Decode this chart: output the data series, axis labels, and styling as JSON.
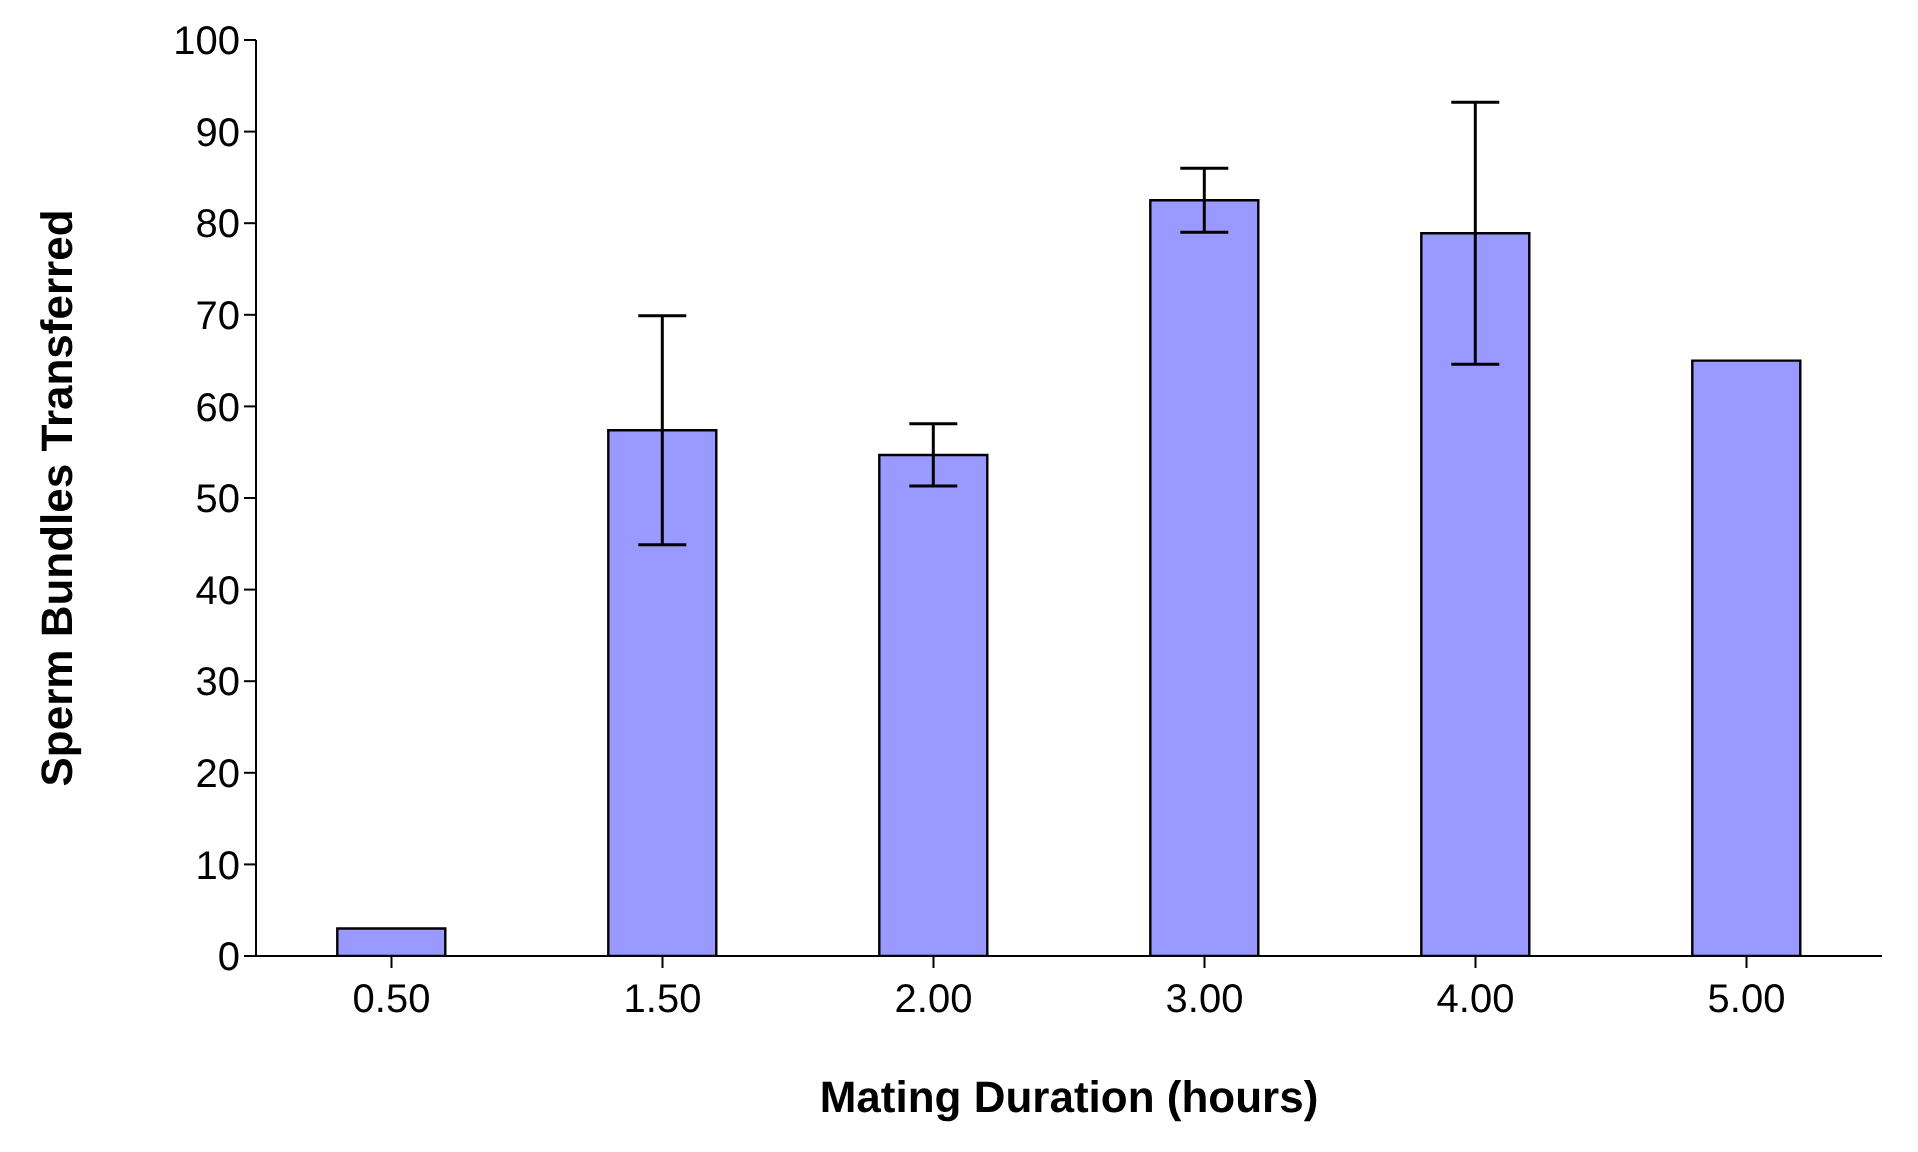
{
  "chart_data": {
    "type": "bar",
    "xlabel": "Mating Duration (hours)",
    "ylabel": "Sperm Bundles Transferred",
    "categories": [
      "0.50",
      "1.50",
      "2.00",
      "3.00",
      "4.00",
      "5.00"
    ],
    "values": [
      3,
      57.4,
      54.7,
      82.5,
      78.9,
      65
    ],
    "errors": [
      null,
      12.5,
      3.4,
      3.5,
      14.3,
      null
    ],
    "color": "#9999ff",
    "ylim": [
      0,
      100
    ],
    "yticks": [
      0,
      10,
      20,
      30,
      40,
      50,
      60,
      70,
      80,
      90,
      100
    ],
    "grid": false,
    "legend": false
  }
}
